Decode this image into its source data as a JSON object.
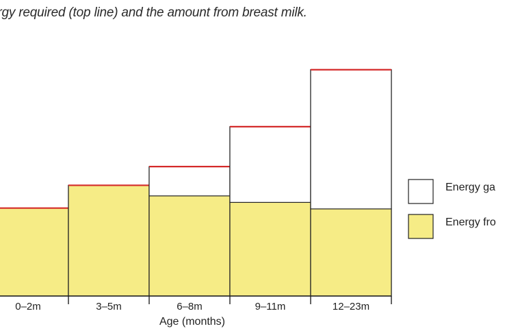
{
  "caption": "ergy required (top line) and the amount from breast milk.",
  "colors": {
    "breast_milk_fill": "#f6ec86",
    "required_line": "#d42a2a",
    "gap_fill": "#ffffff",
    "outline": "#222222"
  },
  "chart_data": {
    "type": "bar",
    "stacked": true,
    "xlabel": "Age (months)",
    "categories": [
      "0–2m",
      "3–5m",
      "6–8m",
      "9–11m",
      "12–23m"
    ],
    "series": [
      {
        "name": "Energy fro",
        "key": "breast_milk",
        "values": [
          540,
          680,
          615,
          575,
          535
        ]
      },
      {
        "name": "Energy ga",
        "key": "gap",
        "values": [
          0,
          0,
          180,
          465,
          855
        ]
      }
    ],
    "required_total": [
      540,
      680,
      795,
      1040,
      1390
    ],
    "legend_position": "right",
    "ylim": [
      0,
      1410
    ],
    "grid": false
  }
}
